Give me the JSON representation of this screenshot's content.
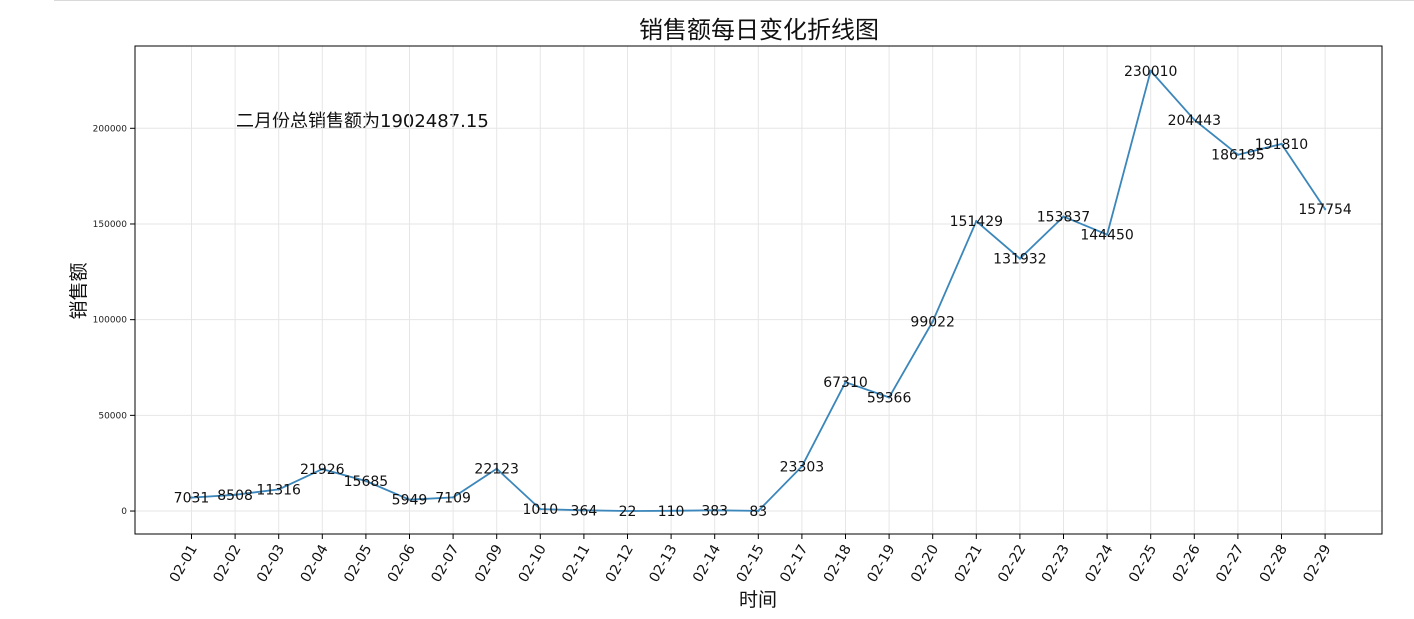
{
  "chart_data": {
    "type": "line",
    "title": "销售额每日变化折线图",
    "xlabel": "时间",
    "ylabel": "销售额",
    "annotation": "二月份总销售额为1902487.15",
    "grid": true,
    "ylim": [
      -12000,
      243000
    ],
    "yticks": [
      0,
      50000,
      100000,
      150000,
      200000
    ],
    "line_color": "#3b86ba",
    "categories": [
      "02-01",
      "02-02",
      "02-03",
      "02-04",
      "02-05",
      "02-06",
      "02-07",
      "02-09",
      "02-10",
      "02-11",
      "02-12",
      "02-13",
      "02-14",
      "02-15",
      "02-17",
      "02-18",
      "02-19",
      "02-20",
      "02-21",
      "02-22",
      "02-23",
      "02-24",
      "02-25",
      "02-26",
      "02-27",
      "02-28",
      "02-29"
    ],
    "values": [
      7031,
      8508,
      11316,
      21926,
      15685,
      5949,
      7109,
      22123,
      1010,
      364,
      22,
      110,
      383,
      83,
      23303,
      67310,
      59366,
      99022,
      151429,
      131932,
      153837,
      144450,
      230010,
      204443,
      186195,
      191810,
      157754
    ]
  }
}
